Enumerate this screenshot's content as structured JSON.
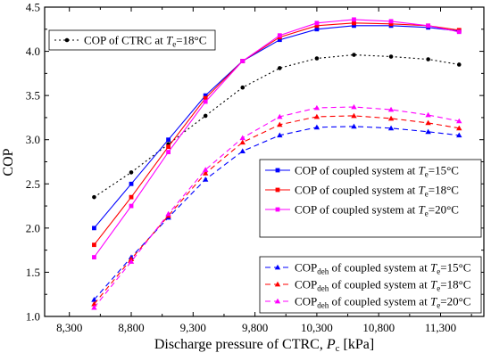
{
  "chart_data": {
    "type": "line",
    "title": "",
    "xlabel": "Discharge pressure of CTRC, P_c [kPa]",
    "xlabel_parts": {
      "main": "Discharge pressure of CTRC, ",
      "var": "P",
      "sub": "c",
      "unit": " [kPa]"
    },
    "ylabel": "COP",
    "xlim": [
      8100,
      11650
    ],
    "ylim": [
      1.0,
      4.5
    ],
    "x_tick_values": [
      8300,
      8800,
      9300,
      9800,
      10300,
      10800,
      11300
    ],
    "x_tick_labels": [
      "8,300",
      "8,800",
      "9,300",
      "9,800",
      "10,300",
      "10,800",
      "11,300"
    ],
    "y_tick_values": [
      1.0,
      1.5,
      2.0,
      2.5,
      3.0,
      3.5,
      4.0,
      4.5
    ],
    "y_tick_labels": [
      "1.0",
      "1.5",
      "2.0",
      "2.5",
      "3.0",
      "3.5",
      "4.0",
      "4.5"
    ],
    "grid": false,
    "x": [
      8500,
      8800,
      9100,
      9400,
      9700,
      10000,
      10300,
      10600,
      10900,
      11200,
      11450
    ],
    "series": [
      {
        "name": "COP of CTRC at Te=18°C",
        "label_parts": [
          "COP of CTRC at ",
          "T",
          "e",
          "=18°C"
        ],
        "values": [
          2.35,
          2.63,
          2.95,
          3.27,
          3.59,
          3.81,
          3.92,
          3.96,
          3.94,
          3.91,
          3.85
        ],
        "color": "#000000",
        "dash": "2,3",
        "marker": "circle"
      },
      {
        "name": "COP of coupled system at Te=15°C",
        "label_parts": [
          "COP of coupled system at ",
          "T",
          "e",
          "=15°C"
        ],
        "values": [
          2.0,
          2.5,
          3.0,
          3.5,
          3.89,
          4.13,
          4.25,
          4.29,
          4.29,
          4.27,
          4.23
        ],
        "color": "#0000ff",
        "dash": "",
        "marker": "square"
      },
      {
        "name": "COP of coupled system at Te=18°C",
        "label_parts": [
          "COP of coupled system at ",
          "T",
          "e",
          "=18°C"
        ],
        "values": [
          1.81,
          2.35,
          2.92,
          3.47,
          3.89,
          4.16,
          4.29,
          4.32,
          4.31,
          4.29,
          4.24
        ],
        "color": "#ff0000",
        "dash": "",
        "marker": "square"
      },
      {
        "name": "COP of coupled system at Te=20°C",
        "label_parts": [
          "COP of coupled system at ",
          "T",
          "e",
          "=20°C"
        ],
        "values": [
          1.67,
          2.25,
          2.86,
          3.43,
          3.89,
          4.18,
          4.32,
          4.36,
          4.34,
          4.29,
          4.22
        ],
        "color": "#ff00ff",
        "dash": "",
        "marker": "square"
      },
      {
        "name": "COPdeh of coupled system at Te=15°C",
        "label_parts": [
          "COP",
          "deh",
          " of coupled system at ",
          "T",
          "e",
          "=15°C"
        ],
        "values": [
          1.19,
          1.67,
          2.12,
          2.55,
          2.87,
          3.05,
          3.14,
          3.15,
          3.13,
          3.09,
          3.05
        ],
        "color": "#0000ff",
        "dash": "6,4",
        "marker": "triangle"
      },
      {
        "name": "COPdeh of coupled system at Te=18°C",
        "label_parts": [
          "COP",
          "deh",
          " of coupled system at ",
          "T",
          "e",
          "=18°C"
        ],
        "values": [
          1.14,
          1.65,
          2.14,
          2.62,
          2.97,
          3.17,
          3.26,
          3.27,
          3.24,
          3.19,
          3.13
        ],
        "color": "#ff0000",
        "dash": "6,4",
        "marker": "triangle"
      },
      {
        "name": "COPdeh of coupled system at Te=20°C",
        "label_parts": [
          "COP",
          "deh",
          " of coupled system at ",
          "T",
          "e",
          "=20°C"
        ],
        "values": [
          1.1,
          1.62,
          2.16,
          2.66,
          3.02,
          3.26,
          3.36,
          3.37,
          3.34,
          3.28,
          3.21
        ],
        "color": "#ff00ff",
        "dash": "6,4",
        "marker": "triangle"
      }
    ],
    "legends": [
      {
        "placement": "top-left",
        "series": [
          0
        ]
      },
      {
        "placement": "center-right",
        "series": [
          1,
          2,
          3
        ]
      },
      {
        "placement": "bottom-right",
        "series": [
          4,
          5,
          6
        ]
      }
    ]
  }
}
